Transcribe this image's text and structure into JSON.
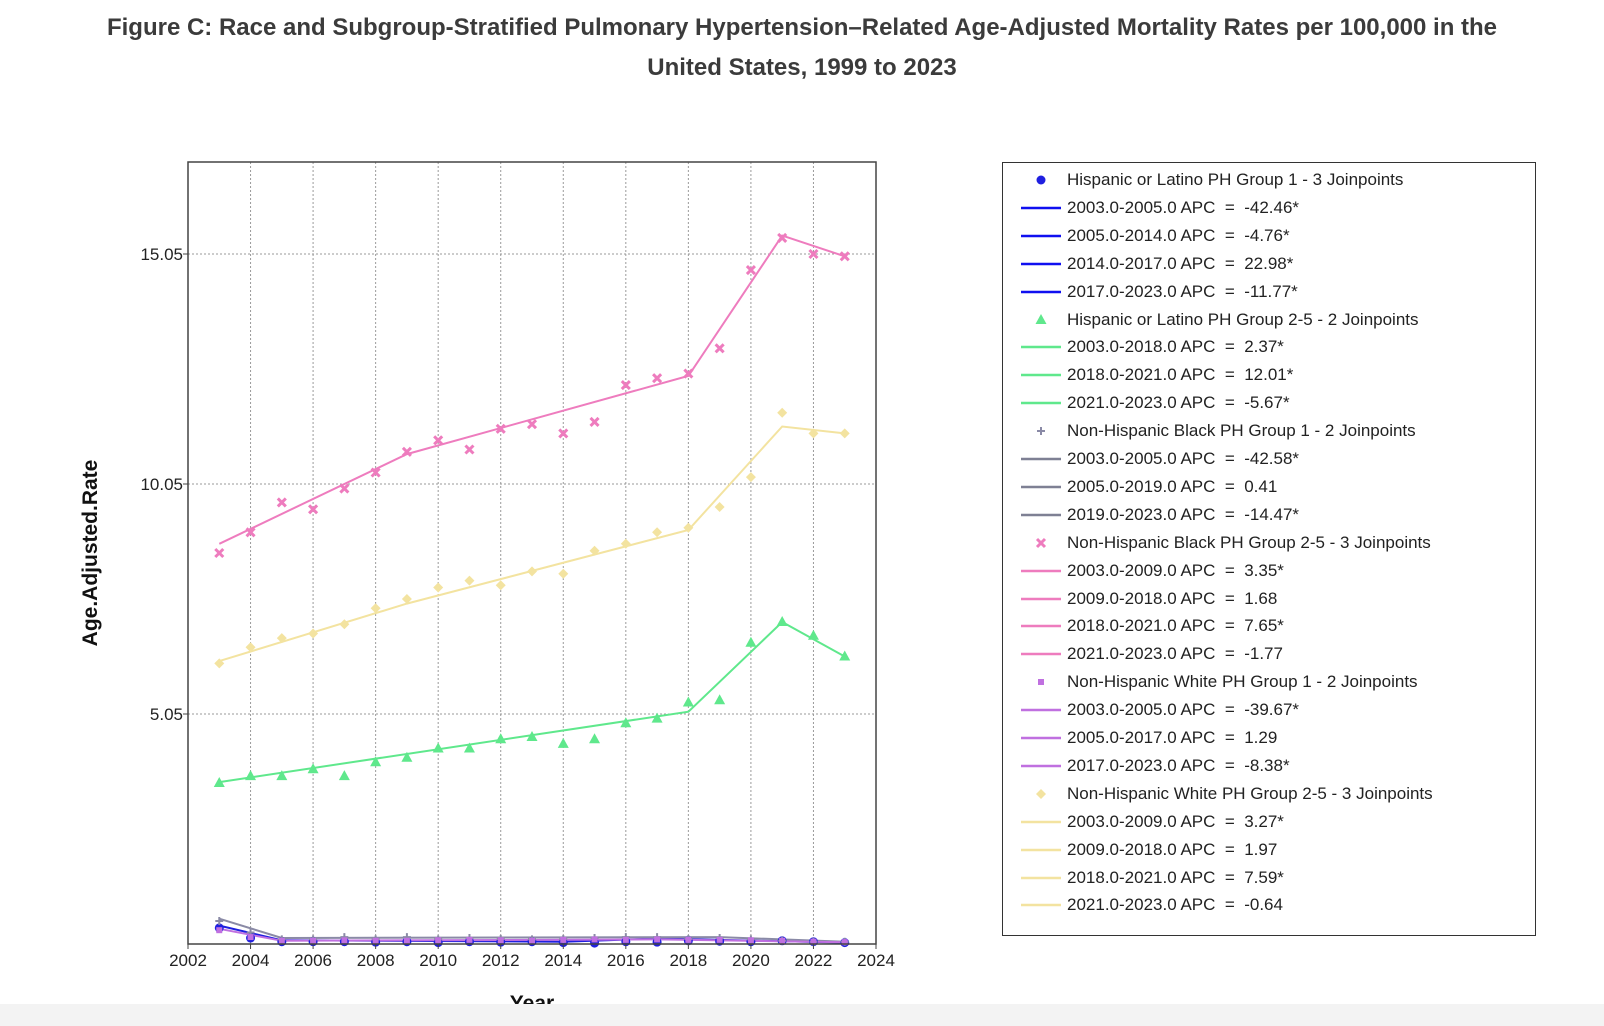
{
  "title_line1": "Figure C: Race and Subgroup-Stratified Pulmonary Hypertension–Related Age-Adjusted Mortality Rates per 100,000 in the",
  "title_line2": "United States, 1999 to 2023",
  "chart_data": {
    "type": "line",
    "xlabel": "Year",
    "ylabel": "Age.Adjusted.Rate",
    "xlim": [
      2002,
      2024
    ],
    "ylim": [
      0.05,
      17.05
    ],
    "xticks": [
      2002,
      2004,
      2006,
      2008,
      2010,
      2012,
      2014,
      2016,
      2018,
      2020,
      2022,
      2024
    ],
    "yticks": [
      5.05,
      10.05,
      15.05
    ],
    "ytick_labels": [
      "5.05",
      "10.05",
      "15.05"
    ],
    "grid": true,
    "legend_position": "right",
    "x": [
      2003,
      2004,
      2005,
      2006,
      2007,
      2008,
      2009,
      2010,
      2011,
      2012,
      2013,
      2014,
      2015,
      2016,
      2017,
      2018,
      2019,
      2020,
      2021,
      2022,
      2023
    ],
    "series": [
      {
        "name": "Hispanic or Latino PH Group 1 - 3 Joinpoints",
        "color": "#1f1fe0",
        "marker": "circle",
        "observed": [
          0.4,
          0.18,
          0.1,
          0.1,
          0.1,
          0.09,
          0.1,
          0.08,
          0.1,
          0.09,
          0.1,
          0.08,
          0.07,
          0.1,
          0.09,
          0.12,
          0.11,
          0.1,
          0.12,
          0.1,
          0.08
        ],
        "fit": [
          [
            2003,
            0.45
          ],
          [
            2005,
            0.13
          ],
          [
            2014,
            0.1
          ],
          [
            2017,
            0.17
          ],
          [
            2023,
            0.08
          ]
        ],
        "segments": [
          {
            "period": "2003.0-2005.0",
            "apc": "-42.46*"
          },
          {
            "period": "2005.0-2014.0",
            "apc": "-4.76*"
          },
          {
            "period": "2014.0-2017.0",
            "apc": "22.98*"
          },
          {
            "period": "2017.0-2023.0",
            "apc": "-11.77*"
          }
        ]
      },
      {
        "name": "Hispanic or Latino PH Group 2-5 - 2 Joinpoints",
        "color": "#5fe88c",
        "marker": "triangle",
        "observed": [
          3.55,
          3.7,
          3.7,
          3.85,
          3.7,
          4.0,
          4.1,
          4.3,
          4.3,
          4.5,
          4.55,
          4.4,
          4.5,
          4.85,
          4.95,
          5.3,
          5.35,
          6.6,
          7.05,
          6.75,
          6.3
        ],
        "fit": [
          [
            2003,
            3.57
          ],
          [
            2018,
            5.1
          ],
          [
            2021,
            7.05
          ],
          [
            2023,
            6.3
          ]
        ],
        "segments": [
          {
            "period": "2003.0-2018.0",
            "apc": "2.37*"
          },
          {
            "period": "2018.0-2021.0",
            "apc": "12.01*"
          },
          {
            "period": "2021.0-2023.0",
            "apc": "-5.67*"
          }
        ]
      },
      {
        "name": "Non-Hispanic Black PH Group 1 - 2 Joinpoints",
        "color": "#8a8aa6",
        "marker": "plus",
        "observed": [
          0.55,
          0.3,
          0.15,
          0.15,
          0.2,
          0.15,
          0.2,
          0.15,
          0.18,
          0.16,
          0.15,
          0.16,
          0.18,
          0.2,
          0.2,
          0.16,
          0.18,
          0.15,
          0.12,
          0.1,
          0.1
        ],
        "fit": [
          [
            2003,
            0.6
          ],
          [
            2005,
            0.18
          ],
          [
            2019,
            0.2
          ],
          [
            2023,
            0.1
          ]
        ],
        "segments": [
          {
            "period": "2003.0-2005.0",
            "apc": "-42.58*"
          },
          {
            "period": "2005.0-2019.0",
            "apc": "0.41"
          },
          {
            "period": "2019.0-2023.0",
            "apc": "-14.47*"
          }
        ]
      },
      {
        "name": "Non-Hispanic Black PH Group 2-5 - 3 Joinpoints",
        "color": "#ee7cbe",
        "marker": "square",
        "observed": [
          8.55,
          9.0,
          9.65,
          9.5,
          9.95,
          10.3,
          10.75,
          11.0,
          10.8,
          11.25,
          11.35,
          11.15,
          11.4,
          12.2,
          12.35,
          12.45,
          13.0,
          14.7,
          15.4,
          15.05,
          15.0
        ],
        "fit": [
          [
            2003,
            8.75
          ],
          [
            2009,
            10.7
          ],
          [
            2018,
            12.4
          ],
          [
            2021,
            15.45
          ],
          [
            2023,
            15.0
          ]
        ],
        "segments": [
          {
            "period": "2003.0-2009.0",
            "apc": "3.35*"
          },
          {
            "period": "2009.0-2018.0",
            "apc": "1.68"
          },
          {
            "period": "2018.0-2021.0",
            "apc": "7.65*"
          },
          {
            "period": "2021.0-2023.0",
            "apc": "-1.77"
          }
        ]
      },
      {
        "name": "Non-Hispanic White PH Group 1 - 2 Joinpoints",
        "color": "#c070e0",
        "marker": "small-square",
        "observed": [
          0.35,
          0.2,
          0.12,
          0.12,
          0.13,
          0.12,
          0.12,
          0.13,
          0.14,
          0.13,
          0.12,
          0.14,
          0.15,
          0.14,
          0.15,
          0.14,
          0.14,
          0.13,
          0.12,
          0.1,
          0.09
        ],
        "fit": [
          [
            2003,
            0.38
          ],
          [
            2005,
            0.12
          ],
          [
            2017,
            0.15
          ],
          [
            2023,
            0.09
          ]
        ],
        "segments": [
          {
            "period": "2003.0-2005.0",
            "apc": "-39.67*"
          },
          {
            "period": "2005.0-2017.0",
            "apc": "1.29"
          },
          {
            "period": "2017.0-2023.0",
            "apc": "-8.38*"
          }
        ]
      },
      {
        "name": "Non-Hispanic White PH Group 2-5 - 3 Joinpoints",
        "color": "#f3e3a0",
        "marker": "diamond",
        "observed": [
          6.15,
          6.5,
          6.7,
          6.8,
          7.0,
          7.35,
          7.55,
          7.8,
          7.95,
          7.85,
          8.15,
          8.1,
          8.6,
          8.75,
          9.0,
          9.1,
          9.55,
          10.2,
          11.6,
          11.15,
          11.15
        ],
        "fit": [
          [
            2003,
            6.2
          ],
          [
            2009,
            7.45
          ],
          [
            2018,
            9.05
          ],
          [
            2021,
            11.3
          ],
          [
            2023,
            11.15
          ]
        ],
        "segments": [
          {
            "period": "2003.0-2009.0",
            "apc": "3.27*"
          },
          {
            "period": "2009.0-2018.0",
            "apc": "1.97"
          },
          {
            "period": "2018.0-2021.0",
            "apc": "7.59*"
          },
          {
            "period": "2021.0-2023.0",
            "apc": "-0.64"
          }
        ]
      }
    ],
    "legend_line_colors": [
      "#1010f0",
      "#5fe88c",
      "#7e8094",
      "#ee7cbe",
      "#c070e0",
      "#f3e3a0"
    ],
    "apc_prefix": "APC  =  "
  }
}
